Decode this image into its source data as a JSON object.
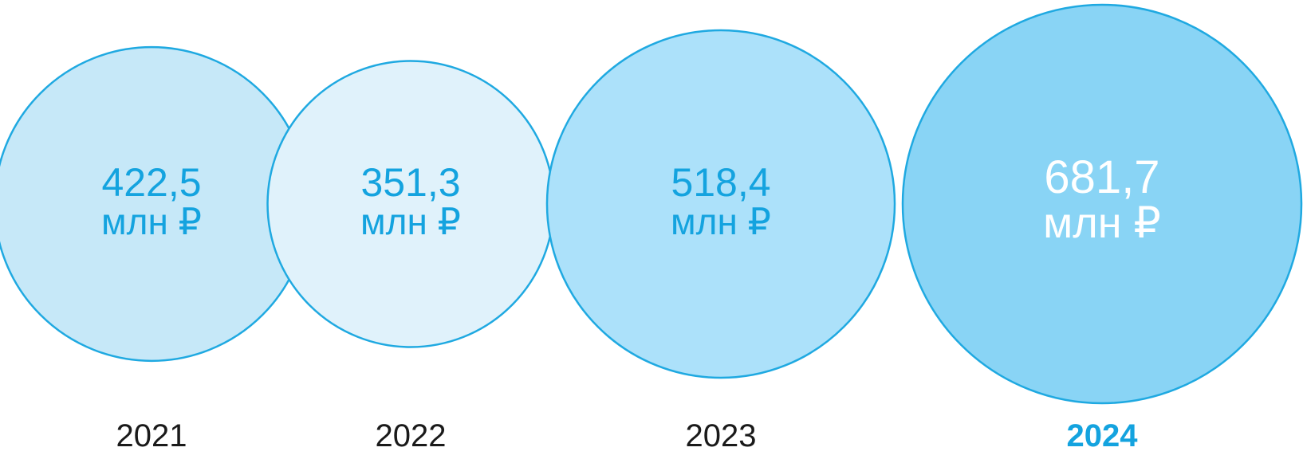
{
  "chart_data": {
    "type": "bubble",
    "title": "",
    "categories": [
      "2021",
      "2022",
      "2023",
      "2024"
    ],
    "series": [
      {
        "values": [
          422.5,
          351.3,
          518.4,
          681.7
        ],
        "labels": [
          "422,5",
          "351,3",
          "518,4",
          "681,7"
        ]
      }
    ],
    "unit": "млн ₽",
    "highlighted_category": "2024",
    "colors": {
      "fills": [
        "#c6e8f8",
        "#e0f2fb",
        "#ace1fa",
        "#89d4f5"
      ],
      "stroke": "#1fa9e1",
      "value_text": "#14a3df",
      "highlight_value_text": "#ffffff",
      "year_text": "#1a1a1a",
      "highlight_year_text": "#14a3df"
    }
  }
}
